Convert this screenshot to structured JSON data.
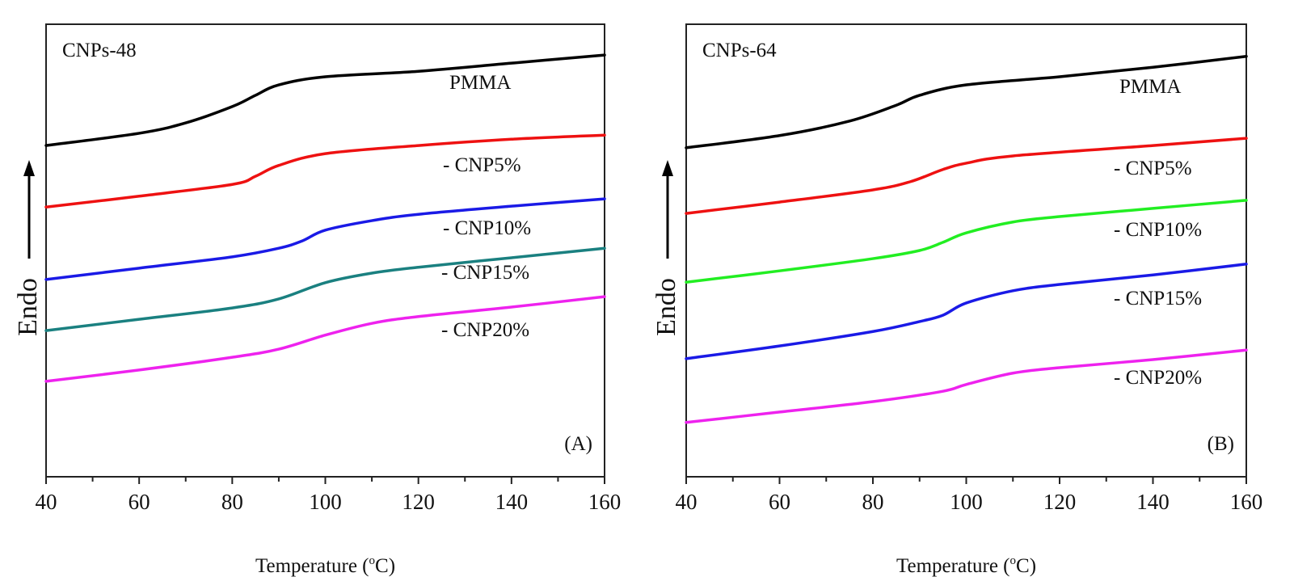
{
  "chart_data": [
    {
      "type": "line",
      "panel_label": "(A)",
      "title": "CNPs-48",
      "xlabel": "Temperature (",
      "xlabel_sup": "o",
      "xlabel_end": "C)",
      "ylabel": "Endo",
      "xlim": [
        40,
        160
      ],
      "ylim": [
        0,
        100
      ],
      "xticks": [
        "40",
        "60",
        "80",
        "100",
        "120",
        "140",
        "160"
      ],
      "grid": false,
      "series": [
        {
          "name": "PMMA",
          "color": "#000000",
          "x": [
            40,
            60,
            70,
            80,
            85,
            90,
            100,
            120,
            140,
            160
          ],
          "y": [
            73.2,
            75.9,
            78.2,
            81.8,
            84.3,
            86.6,
            88.4,
            89.6,
            91.4,
            93.2
          ]
        },
        {
          "name": "- CNP5%",
          "color": "#ee1111",
          "x": [
            40,
            60,
            80,
            85,
            90,
            100,
            120,
            140,
            160
          ],
          "y": [
            59.6,
            62,
            64.6,
            66.4,
            68.8,
            71.4,
            73.2,
            74.6,
            75.5
          ]
        },
        {
          "name": "- CNP10%",
          "color": "#1a1ae6",
          "x": [
            40,
            60,
            80,
            90,
            95,
            100,
            110,
            120,
            140,
            160
          ],
          "y": [
            43.6,
            46.1,
            48.6,
            50.5,
            52.1,
            54.5,
            56.6,
            58,
            59.8,
            61.4
          ]
        },
        {
          "name": "- CNP15%",
          "color": "#1a8080",
          "x": [
            40,
            60,
            80,
            90,
            100,
            110,
            120,
            140,
            160
          ],
          "y": [
            32.3,
            34.8,
            37.3,
            39.3,
            42.9,
            45,
            46.3,
            48.4,
            50.5
          ]
        },
        {
          "name": "- CNP20%",
          "color": "#ee22ee",
          "x": [
            40,
            60,
            80,
            90,
            100,
            110,
            120,
            140,
            160
          ],
          "y": [
            21.1,
            23.6,
            26.4,
            28.2,
            31.3,
            33.9,
            35.4,
            37.5,
            39.8
          ]
        }
      ]
    },
    {
      "type": "line",
      "panel_label": "(B)",
      "title": "CNPs-64",
      "xlabel": "Temperature (",
      "xlabel_sup": "o",
      "xlabel_end": "C)",
      "ylabel": "Endo",
      "xlim": [
        40,
        160
      ],
      "ylim": [
        0,
        100
      ],
      "xticks": [
        "40",
        "60",
        "80",
        "100",
        "120",
        "140",
        "160"
      ],
      "grid": false,
      "series": [
        {
          "name": "PMMA",
          "color": "#000000",
          "x": [
            40,
            60,
            75,
            85,
            90,
            100,
            120,
            140,
            160
          ],
          "y": [
            72.7,
            75.4,
            78.6,
            82.1,
            84.3,
            86.6,
            88.4,
            90.5,
            92.9
          ]
        },
        {
          "name": "- CNP5%",
          "color": "#ee1111",
          "x": [
            40,
            60,
            80,
            88,
            95,
            100,
            110,
            140,
            160
          ],
          "y": [
            58.2,
            60.7,
            63.4,
            65.2,
            67.9,
            69.3,
            70.9,
            73.2,
            74.8
          ]
        },
        {
          "name": "- CNP10%",
          "color": "#22ee22",
          "x": [
            40,
            60,
            80,
            90,
            95,
            100,
            110,
            120,
            140,
            160
          ],
          "y": [
            43,
            45.5,
            48.2,
            50,
            51.8,
            53.9,
            56.3,
            57.5,
            59.3,
            61.1
          ]
        },
        {
          "name": "- CNP15%",
          "color": "#1a1ae6",
          "x": [
            40,
            60,
            80,
            90,
            95,
            100,
            110,
            120,
            140,
            160
          ],
          "y": [
            26.1,
            28.9,
            32.1,
            34.3,
            35.7,
            38.4,
            41.1,
            42.5,
            44.6,
            47
          ]
        },
        {
          "name": "- CNP20%",
          "color": "#ee22ee",
          "x": [
            40,
            60,
            80,
            95,
            100,
            110,
            120,
            140,
            160
          ],
          "y": [
            12,
            14.3,
            16.6,
            18.9,
            20.4,
            22.9,
            24.1,
            25.9,
            28
          ]
        }
      ]
    }
  ]
}
